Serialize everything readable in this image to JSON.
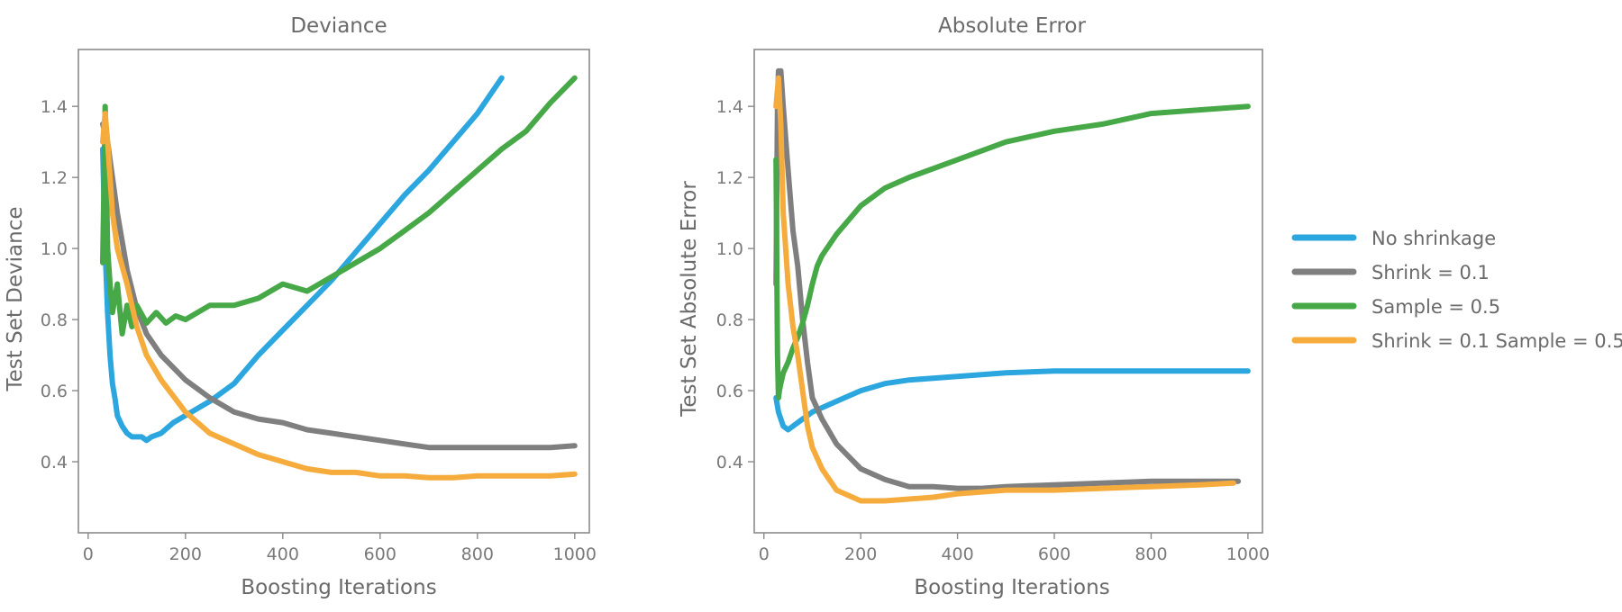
{
  "colors": {
    "No shrinkage": "#2ba6de",
    "Shrink = 0.1": "#7f7f7f",
    "Sample = 0.5": "#46a846",
    "Shrink = 0.1 Sample = 0.5": "#f5ac3c"
  },
  "legend": {
    "placement": "right",
    "entries": [
      "No shrinkage",
      "Shrink = 0.1",
      "Sample = 0.5",
      "Shrink = 0.1 Sample = 0.5"
    ]
  },
  "chart_data": [
    {
      "type": "line",
      "title": "Deviance",
      "xlabel": "Boosting Iterations",
      "ylabel": "Test Set Deviance",
      "xlim": [
        -20,
        1030
      ],
      "ylim": [
        0.2,
        1.56
      ],
      "xticks": [
        0,
        200,
        400,
        600,
        800,
        1000
      ],
      "yticks": [
        0.4,
        0.6,
        0.8,
        1.0,
        1.2,
        1.4
      ],
      "ytick_labels": [
        "0.4",
        "0.6",
        "0.8",
        "1.0",
        "1.2",
        "1.4"
      ],
      "grid": false,
      "series": [
        {
          "name": "No shrinkage",
          "x": [
            30,
            35,
            40,
            45,
            50,
            55,
            60,
            70,
            80,
            90,
            100,
            110,
            120,
            130,
            150,
            175,
            200,
            250,
            300,
            350,
            400,
            450,
            500,
            550,
            600,
            650,
            700,
            750,
            800,
            850
          ],
          "y": [
            1.28,
            1.0,
            0.82,
            0.7,
            0.62,
            0.58,
            0.53,
            0.5,
            0.48,
            0.47,
            0.47,
            0.47,
            0.46,
            0.47,
            0.48,
            0.51,
            0.53,
            0.57,
            0.62,
            0.7,
            0.77,
            0.84,
            0.91,
            0.99,
            1.07,
            1.15,
            1.22,
            1.3,
            1.38,
            1.48
          ]
        },
        {
          "name": "Shrink = 0.1",
          "x": [
            30,
            40,
            50,
            60,
            70,
            80,
            100,
            120,
            150,
            200,
            250,
            300,
            350,
            400,
            450,
            500,
            550,
            600,
            650,
            700,
            750,
            800,
            850,
            900,
            950,
            1000
          ],
          "y": [
            1.35,
            1.3,
            1.2,
            1.1,
            1.02,
            0.94,
            0.83,
            0.76,
            0.7,
            0.63,
            0.58,
            0.54,
            0.52,
            0.51,
            0.49,
            0.48,
            0.47,
            0.46,
            0.45,
            0.44,
            0.44,
            0.44,
            0.44,
            0.44,
            0.44,
            0.445
          ]
        },
        {
          "name": "Sample = 0.5",
          "x": [
            30,
            35,
            40,
            45,
            50,
            60,
            70,
            80,
            90,
            100,
            120,
            140,
            160,
            180,
            200,
            250,
            300,
            350,
            400,
            450,
            500,
            550,
            600,
            650,
            700,
            750,
            800,
            850,
            900,
            950,
            1000
          ],
          "y": [
            0.96,
            1.4,
            1.0,
            0.9,
            0.82,
            0.9,
            0.76,
            0.84,
            0.78,
            0.84,
            0.79,
            0.82,
            0.79,
            0.81,
            0.8,
            0.84,
            0.84,
            0.86,
            0.9,
            0.88,
            0.92,
            0.96,
            1.0,
            1.05,
            1.1,
            1.16,
            1.22,
            1.28,
            1.33,
            1.41,
            1.48
          ]
        },
        {
          "name": "Shrink = 0.1 Sample = 0.5",
          "x": [
            30,
            35,
            40,
            50,
            60,
            70,
            80,
            100,
            120,
            150,
            200,
            250,
            300,
            350,
            400,
            450,
            500,
            550,
            600,
            650,
            700,
            750,
            800,
            850,
            900,
            950,
            1000
          ],
          "y": [
            1.3,
            1.38,
            1.3,
            1.1,
            1.0,
            0.95,
            0.9,
            0.78,
            0.7,
            0.63,
            0.54,
            0.48,
            0.45,
            0.42,
            0.4,
            0.38,
            0.37,
            0.37,
            0.36,
            0.36,
            0.355,
            0.355,
            0.36,
            0.36,
            0.36,
            0.36,
            0.365
          ]
        }
      ]
    },
    {
      "type": "line",
      "title": "Absolute Error",
      "xlabel": "Boosting Iterations",
      "ylabel": "Test Set Absolute Error",
      "xlim": [
        -20,
        1030
      ],
      "ylim": [
        0.2,
        1.56
      ],
      "xticks": [
        0,
        200,
        400,
        600,
        800,
        1000
      ],
      "yticks": [
        0.4,
        0.6,
        0.8,
        1.0,
        1.2,
        1.4
      ],
      "ytick_labels": [
        "0.4",
        "0.6",
        "0.8",
        "1.0",
        "1.2",
        "1.4"
      ],
      "grid": false,
      "series": [
        {
          "name": "No shrinkage",
          "x": [
            25,
            30,
            35,
            40,
            50,
            60,
            80,
            100,
            150,
            200,
            250,
            300,
            400,
            500,
            600,
            700,
            800,
            900,
            1000
          ],
          "y": [
            0.58,
            0.54,
            0.52,
            0.5,
            0.49,
            0.5,
            0.52,
            0.54,
            0.57,
            0.6,
            0.62,
            0.63,
            0.64,
            0.65,
            0.655,
            0.655,
            0.655,
            0.655,
            0.655
          ]
        },
        {
          "name": "Shrink = 0.1",
          "x": [
            25,
            28,
            30,
            32,
            35,
            40,
            50,
            60,
            70,
            80,
            90,
            100,
            120,
            150,
            200,
            250,
            300,
            350,
            400,
            450,
            500,
            600,
            700,
            800,
            900,
            980
          ],
          "y": [
            0.9,
            1.4,
            1.5,
            1.45,
            1.5,
            1.4,
            1.22,
            1.05,
            0.95,
            0.8,
            0.68,
            0.58,
            0.52,
            0.45,
            0.38,
            0.35,
            0.33,
            0.33,
            0.325,
            0.325,
            0.33,
            0.335,
            0.34,
            0.345,
            0.345,
            0.345
          ]
        },
        {
          "name": "Sample = 0.5",
          "x": [
            25,
            28,
            30,
            32,
            35,
            40,
            50,
            60,
            70,
            80,
            90,
            100,
            110,
            120,
            150,
            200,
            250,
            300,
            400,
            500,
            600,
            700,
            800,
            900,
            1000
          ],
          "y": [
            1.25,
            0.7,
            0.58,
            0.6,
            0.62,
            0.65,
            0.68,
            0.72,
            0.75,
            0.79,
            0.84,
            0.9,
            0.95,
            0.98,
            1.04,
            1.12,
            1.17,
            1.2,
            1.25,
            1.3,
            1.33,
            1.35,
            1.38,
            1.39,
            1.4
          ]
        },
        {
          "name": "Shrink = 0.1 Sample = 0.5",
          "x": [
            25,
            30,
            35,
            40,
            50,
            60,
            70,
            80,
            90,
            100,
            120,
            150,
            200,
            250,
            300,
            350,
            400,
            500,
            600,
            700,
            800,
            900,
            970
          ],
          "y": [
            1.4,
            1.48,
            1.35,
            1.1,
            0.9,
            0.78,
            0.7,
            0.6,
            0.5,
            0.44,
            0.38,
            0.32,
            0.29,
            0.29,
            0.295,
            0.3,
            0.31,
            0.32,
            0.32,
            0.325,
            0.33,
            0.335,
            0.34
          ]
        }
      ]
    }
  ]
}
